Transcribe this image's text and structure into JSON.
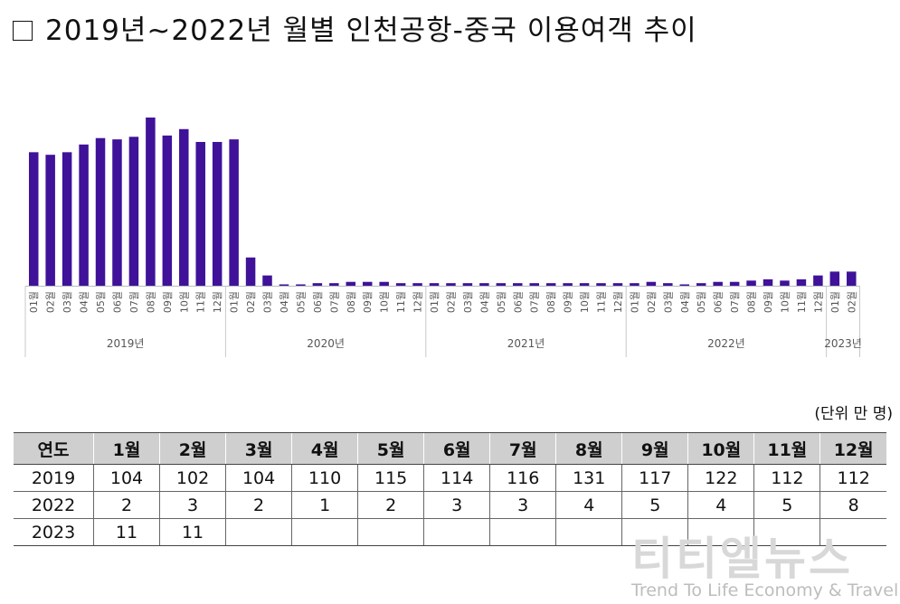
{
  "title": "2019년~2022년 월별 인천공항-중국 이용여객 추이",
  "chart_data": {
    "type": "bar",
    "color": "#3f1299",
    "month_suffix": "월",
    "groups": [
      {
        "label": "2019년",
        "months": [
          "01",
          "02",
          "03",
          "04",
          "05",
          "06",
          "07",
          "08",
          "09",
          "10",
          "11",
          "12"
        ],
        "values": [
          104,
          102,
          104,
          110,
          115,
          114,
          116,
          131,
          117,
          122,
          112,
          112
        ]
      },
      {
        "label": "2020년",
        "months": [
          "01",
          "02",
          "03",
          "04",
          "05",
          "06",
          "07",
          "08",
          "09",
          "10",
          "11",
          "12"
        ],
        "values": [
          114,
          22,
          8,
          1,
          1,
          2,
          2,
          3,
          3,
          3,
          2,
          2
        ]
      },
      {
        "label": "2021년",
        "months": [
          "01",
          "02",
          "03",
          "04",
          "05",
          "06",
          "07",
          "08",
          "09",
          "10",
          "11",
          "12"
        ],
        "values": [
          2,
          2,
          2,
          2,
          2,
          2,
          2,
          2,
          2,
          2,
          2,
          2
        ]
      },
      {
        "label": "2022년",
        "months": [
          "01",
          "02",
          "03",
          "04",
          "05",
          "06",
          "07",
          "08",
          "09",
          "10",
          "11",
          "12"
        ],
        "values": [
          2,
          3,
          2,
          1,
          2,
          3,
          3,
          4,
          5,
          4,
          5,
          8
        ]
      },
      {
        "label": "2023년",
        "months": [
          "01",
          "02"
        ],
        "values": [
          11,
          11
        ]
      }
    ],
    "ylim": [
      0,
      131
    ]
  },
  "unit_label": "(단위 만 명)",
  "table": {
    "headers": [
      "연도",
      "1월",
      "2월",
      "3월",
      "4월",
      "5월",
      "6월",
      "7월",
      "8월",
      "9월",
      "10월",
      "11월",
      "12월"
    ],
    "rows": [
      [
        "2019",
        "104",
        "102",
        "104",
        "110",
        "115",
        "114",
        "116",
        "131",
        "117",
        "122",
        "112",
        "112"
      ],
      [
        "2022",
        "2",
        "3",
        "2",
        "1",
        "2",
        "3",
        "3",
        "4",
        "5",
        "4",
        "5",
        "8"
      ],
      [
        "2023",
        "11",
        "11",
        "",
        "",
        "",
        "",
        "",
        "",
        "",
        "",
        "",
        ""
      ]
    ]
  },
  "watermark": {
    "logo": "티티엘뉴스",
    "subtitle": "Trend To Life Economy & Travel"
  }
}
